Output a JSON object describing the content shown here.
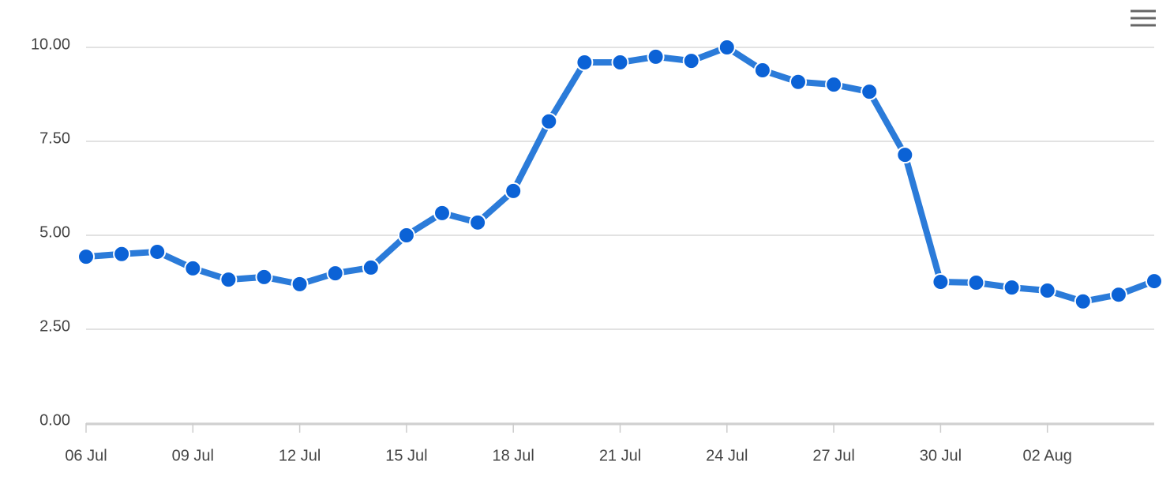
{
  "chart_data": {
    "type": "line",
    "categories": [
      "06 Jul",
      null,
      null,
      "09 Jul",
      null,
      null,
      "12 Jul",
      null,
      null,
      "15 Jul",
      null,
      null,
      "18 Jul",
      null,
      null,
      "21 Jul",
      null,
      null,
      "24 Jul",
      null,
      null,
      "27 Jul",
      null,
      null,
      "30 Jul",
      null,
      null,
      "02 Aug",
      null,
      null,
      null
    ],
    "series": [
      {
        "color": "#2b7bd9",
        "marker_color": "#0b62d6",
        "values": [
          4.43,
          4.5,
          4.56,
          4.12,
          3.82,
          3.89,
          3.7,
          3.99,
          4.14,
          5.0,
          5.59,
          5.34,
          6.18,
          8.03,
          9.6,
          9.6,
          9.75,
          9.64,
          10.0,
          9.39,
          9.08,
          9.01,
          8.82,
          7.14,
          3.76,
          3.74,
          3.61,
          3.53,
          3.24,
          3.42,
          3.78
        ]
      }
    ],
    "ylim": [
      0,
      10
    ],
    "yticks": [
      {
        "value": 0,
        "label": "0.00"
      },
      {
        "value": 2.5,
        "label": "2.50"
      },
      {
        "value": 5,
        "label": "5.00"
      },
      {
        "value": 7.5,
        "label": "7.50"
      },
      {
        "value": 10,
        "label": "10.00"
      }
    ],
    "grid": true
  }
}
